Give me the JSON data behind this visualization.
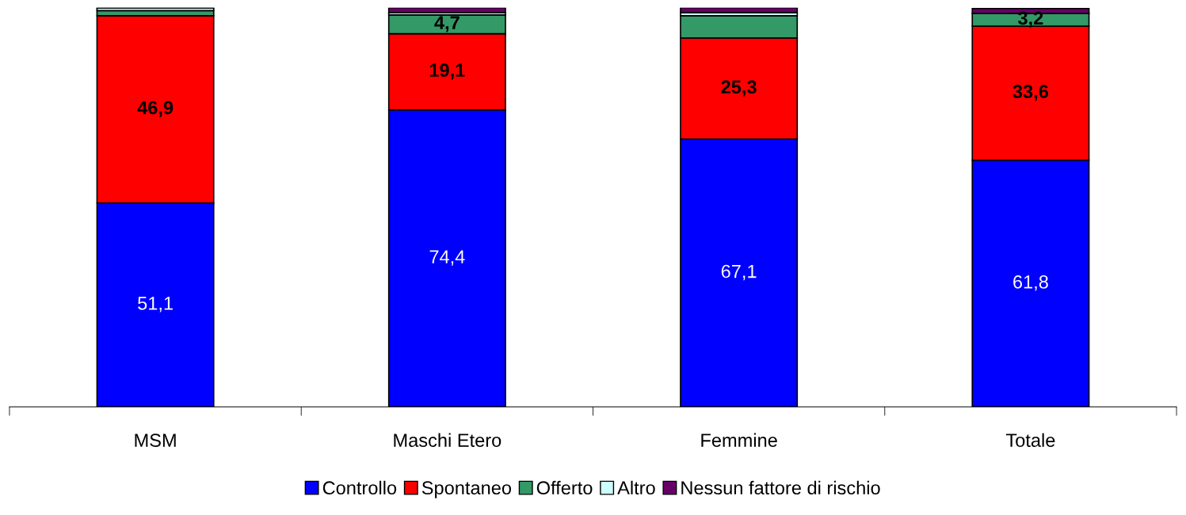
{
  "chart_data": {
    "type": "bar",
    "stacked": true,
    "ylim": [
      0,
      100
    ],
    "categories": [
      "MSM",
      "Maschi Etero",
      "Femmine",
      "Totale"
    ],
    "series": [
      {
        "name": "Controllo",
        "color": "#0000ff",
        "values": [
          51.1,
          74.4,
          67.1,
          61.8
        ],
        "value_labels": [
          "51,1",
          "74,4",
          "67,1",
          "61,8"
        ]
      },
      {
        "name": "Spontaneo",
        "color": "#ff0000",
        "values": [
          46.9,
          19.1,
          25.3,
          33.6
        ],
        "value_labels": [
          "46,9",
          "19,1",
          "25,3",
          "33,6"
        ]
      },
      {
        "name": "Offerto",
        "color": "#339966",
        "values": [
          1.3,
          4.7,
          5.6,
          3.2
        ],
        "value_labels": [
          null,
          "4,7",
          null,
          "3,2"
        ]
      },
      {
        "name": "Altro",
        "color": "#ccffff",
        "values": [
          0.6,
          0.6,
          0.8,
          null
        ]
      },
      {
        "name": "Nessun fattore di rischio",
        "color": "#660066",
        "values": [
          0.1,
          1.2,
          1.2,
          1.2
        ]
      }
    ],
    "legend": "bottom",
    "grid": false,
    "tick_labels": "x"
  }
}
